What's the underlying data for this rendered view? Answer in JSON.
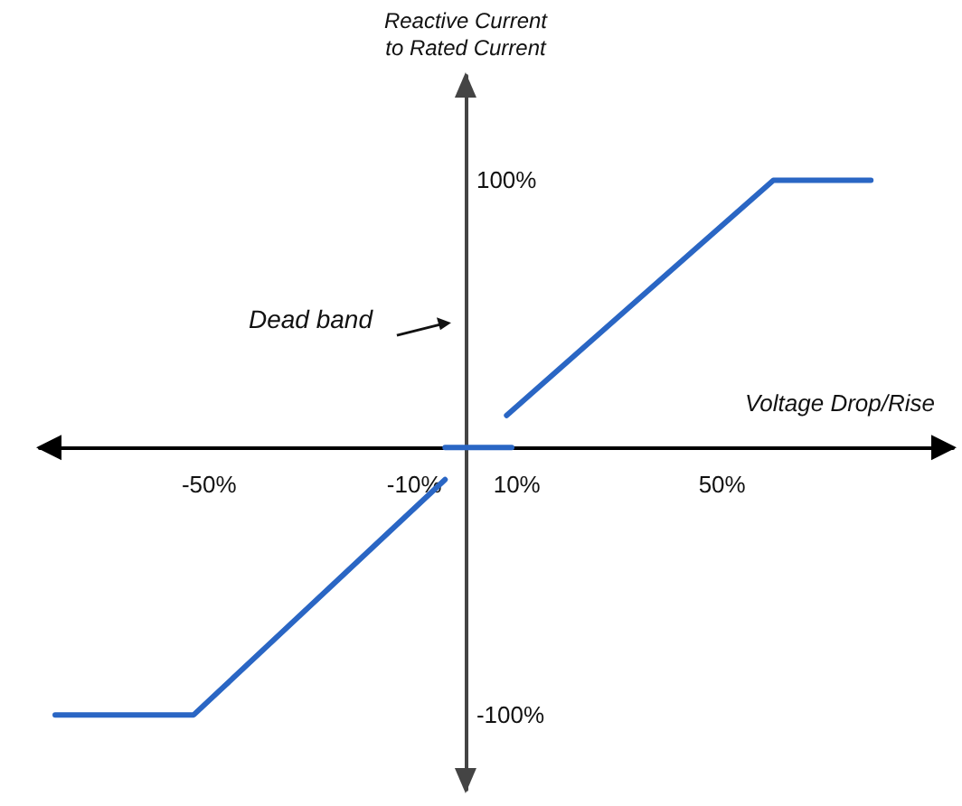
{
  "chart_data": {
    "type": "line",
    "xlabel": "Voltage Drop/Rise",
    "ylabel": "Reactive Current\nto Rated Current",
    "annotations": [
      "Dead band"
    ],
    "series": [
      {
        "color": "#2a66c4",
        "x": [
          -80,
          -53,
          -4,
          null,
          -4,
          9,
          null,
          8,
          60,
          79
        ],
        "values": [
          -100,
          -100,
          -12,
          null,
          0,
          0,
          null,
          12,
          100,
          100
        ]
      }
    ],
    "xlim": [
      -83,
      95
    ],
    "ylim": [
      -128,
      139
    ],
    "xticks": [
      {
        "value": -50,
        "label": "-50%"
      },
      {
        "value": -10,
        "label": "-10%"
      },
      {
        "value": 10,
        "label": "10%"
      },
      {
        "value": 50,
        "label": "50%"
      }
    ],
    "yticks": [
      {
        "value": -100,
        "label": "-100%"
      },
      {
        "value": 100,
        "label": "100%"
      }
    ],
    "grid": false,
    "marker": "none",
    "line_style": "solid"
  }
}
